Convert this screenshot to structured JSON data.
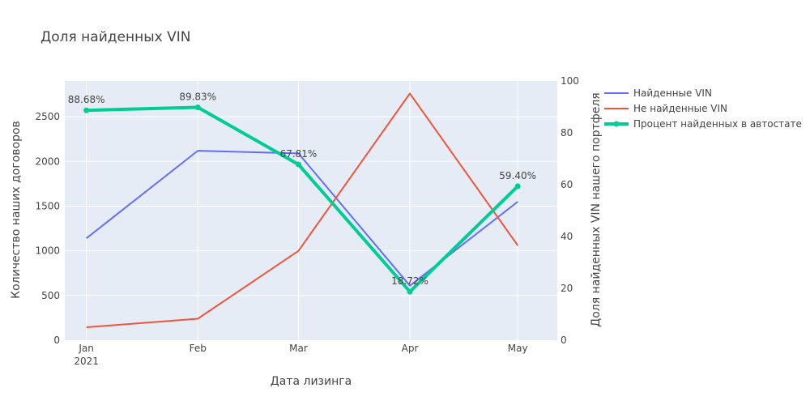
{
  "chart_data": {
    "type": "line",
    "title": "Доля найденных VIN",
    "xlabel": "Дата лизинга",
    "ylabel": "Количество наших договоров",
    "y2label": "Доля найденных VIN нашего портфеля",
    "x_dates": [
      "2021-01-01",
      "2021-02-01",
      "2021-03-01",
      "2021-04-01",
      "2021-05-01"
    ],
    "x_ticks": [
      {
        "date": "2021-01-01",
        "label": "Jan",
        "sublabel": "2021"
      },
      {
        "date": "2021-02-01",
        "label": "Feb",
        "sublabel": ""
      },
      {
        "date": "2021-03-01",
        "label": "Mar",
        "sublabel": ""
      },
      {
        "date": "2021-04-01",
        "label": "Apr",
        "sublabel": ""
      },
      {
        "date": "2021-05-01",
        "label": "May",
        "sublabel": ""
      }
    ],
    "xlim": [
      "2020-12-26",
      "2021-05-12"
    ],
    "ylim": [
      0,
      2900
    ],
    "y_ticks": [
      0,
      500,
      1000,
      1500,
      2000,
      2500
    ],
    "y2lim": [
      0,
      100
    ],
    "y2_ticks": [
      0,
      20,
      40,
      60,
      80,
      100
    ],
    "grid": true,
    "legend_position": "right",
    "series": [
      {
        "name": "Найденные VIN",
        "axis": "y",
        "color": "#636efa",
        "values": [
          1140,
          2120,
          2090,
          610,
          1550
        ]
      },
      {
        "name": "Не найденные VIN",
        "axis": "y",
        "color": "#ef553b",
        "values": [
          145,
          240,
          1000,
          2760,
          1060
        ]
      },
      {
        "name": "Процент найденных в автостате",
        "axis": "y2",
        "color": "#00cc96",
        "markers": true,
        "values": [
          88.68,
          89.83,
          67.81,
          18.72,
          59.4
        ],
        "labels": [
          "88.68%",
          "89.83%",
          "67.81%",
          "18.72%",
          "59.40%"
        ]
      }
    ]
  }
}
